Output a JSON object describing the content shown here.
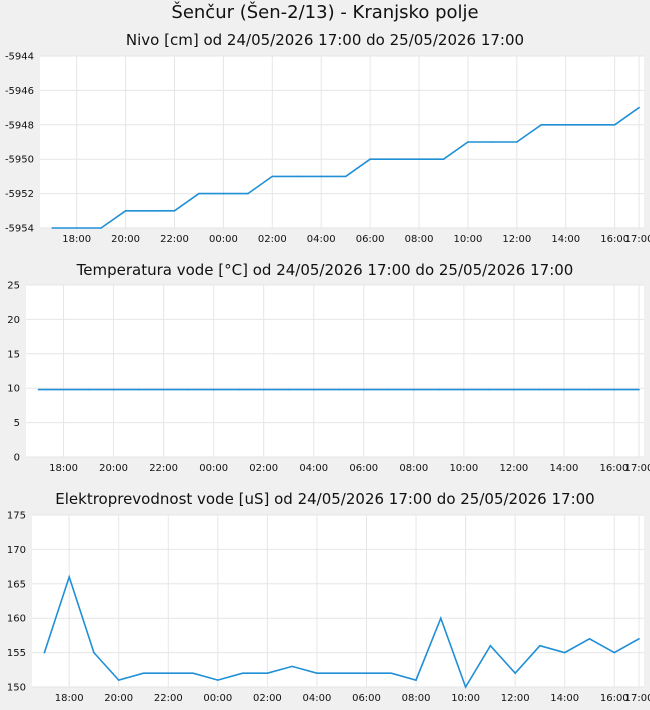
{
  "page": {
    "title": "Šenčur (Šen-2/13) - Kranjsko polje"
  },
  "chart_data": [
    {
      "type": "line",
      "title": "Nivo [cm] od 24/05/2026 17:00 do 25/05/2026 17:00",
      "ylim": [
        -5954,
        -5944
      ],
      "yticks": [
        -5954,
        -5952,
        -5950,
        -5948,
        -5946,
        -5944
      ],
      "xlim": [
        -0.5,
        24.2
      ],
      "xticks": [
        1,
        3,
        5,
        7,
        9,
        11,
        13,
        15,
        17,
        19,
        21,
        23,
        24
      ],
      "xtick_labels": [
        "18:00",
        "20:00",
        "22:00",
        "00:00",
        "02:00",
        "04:00",
        "06:00",
        "08:00",
        "10:00",
        "12:00",
        "14:00",
        "16:00",
        "17:00"
      ],
      "grid": true,
      "line_color": "#1f8fd6",
      "x": [
        0,
        1,
        2,
        3,
        4,
        5,
        6,
        7,
        8,
        9,
        10,
        11,
        12,
        13,
        14,
        15,
        16,
        17,
        18,
        19,
        20,
        21,
        22,
        23,
        24
      ],
      "values": [
        -5954,
        -5954,
        -5954,
        -5953,
        -5953,
        -5953,
        -5952,
        -5952,
        -5952,
        -5951,
        -5951,
        -5951,
        -5951,
        -5950,
        -5950,
        -5950,
        -5950,
        -5949,
        -5949,
        -5949,
        -5948,
        -5948,
        -5948,
        -5948,
        -5947
      ]
    },
    {
      "type": "line",
      "title": "Temperatura vode [°C] od 24/05/2026 17:00 do 25/05/2026 17:00",
      "ylim": [
        0,
        25
      ],
      "yticks": [
        0,
        5,
        10,
        15,
        20,
        25
      ],
      "xlim": [
        -0.5,
        24.2
      ],
      "xticks": [
        1,
        3,
        5,
        7,
        9,
        11,
        13,
        15,
        17,
        19,
        21,
        23,
        24
      ],
      "xtick_labels": [
        "18:00",
        "20:00",
        "22:00",
        "00:00",
        "02:00",
        "04:00",
        "06:00",
        "08:00",
        "10:00",
        "12:00",
        "14:00",
        "16:00",
        "17:00"
      ],
      "grid": true,
      "line_color": "#1f8fd6",
      "x": [
        0,
        1,
        2,
        3,
        4,
        5,
        6,
        7,
        8,
        9,
        10,
        11,
        12,
        13,
        14,
        15,
        16,
        17,
        18,
        19,
        20,
        21,
        22,
        23,
        24
      ],
      "values": [
        9.8,
        9.8,
        9.8,
        9.8,
        9.8,
        9.8,
        9.8,
        9.8,
        9.8,
        9.8,
        9.8,
        9.8,
        9.8,
        9.8,
        9.8,
        9.8,
        9.8,
        9.8,
        9.8,
        9.8,
        9.8,
        9.8,
        9.8,
        9.8,
        9.8
      ]
    },
    {
      "type": "line",
      "title": "Elektroprevodnost vode [uS] od 24/05/2026 17:00 do 25/05/2026 17:00",
      "ylim": [
        150,
        175
      ],
      "yticks": [
        150,
        155,
        160,
        165,
        170,
        175
      ],
      "xlim": [
        -0.5,
        24.2
      ],
      "xticks": [
        1,
        3,
        5,
        7,
        9,
        11,
        13,
        15,
        17,
        19,
        21,
        23,
        24
      ],
      "xtick_labels": [
        "18:00",
        "20:00",
        "22:00",
        "00:00",
        "02:00",
        "04:00",
        "06:00",
        "08:00",
        "10:00",
        "12:00",
        "14:00",
        "16:00",
        "17:00"
      ],
      "grid": true,
      "line_color": "#1f8fd6",
      "x": [
        0,
        1,
        2,
        3,
        4,
        5,
        6,
        7,
        8,
        9,
        10,
        11,
        12,
        13,
        14,
        15,
        16,
        17,
        18,
        19,
        20,
        21,
        22,
        23,
        24
      ],
      "values": [
        155,
        166,
        155,
        151,
        152,
        152,
        152,
        151,
        152,
        152,
        153,
        152,
        152,
        152,
        152,
        151,
        160,
        150,
        156,
        152,
        156,
        155,
        157,
        155,
        157
      ]
    }
  ]
}
